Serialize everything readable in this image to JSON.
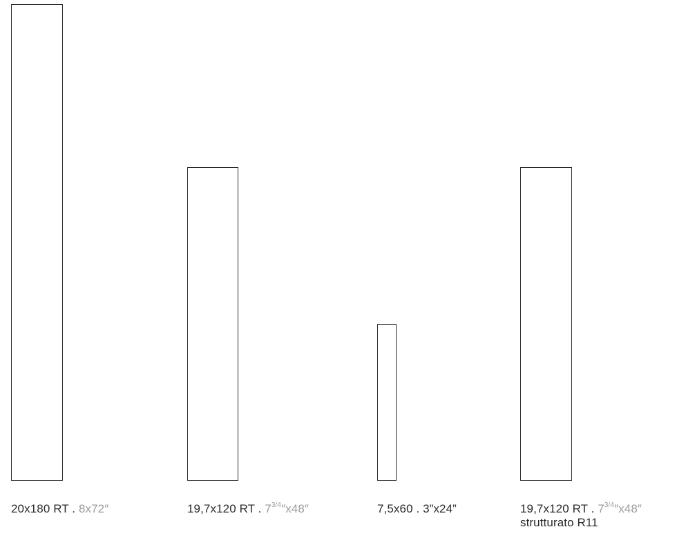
{
  "tiles": [
    {
      "size_metric": "20x180 RT",
      "separator": " . ",
      "size_imperial_pre": "8x72″",
      "size_imperial_sup": "",
      "size_imperial_post": ""
    },
    {
      "size_metric": "19,7x120 RT",
      "separator": " . ",
      "size_imperial_pre": "7",
      "size_imperial_sup": "3/4",
      "size_imperial_post": "″x48″"
    },
    {
      "size_metric": "7,5x60",
      "separator": " . ",
      "size_imperial_pre": "3”x24”",
      "size_imperial_sup": "",
      "size_imperial_post": ""
    },
    {
      "size_metric": "19,7x120 RT",
      "separator": " . ",
      "size_imperial_pre": "7",
      "size_imperial_sup": "3/4",
      "size_imperial_post": "″x48″",
      "finish": "strutturato R11"
    }
  ]
}
